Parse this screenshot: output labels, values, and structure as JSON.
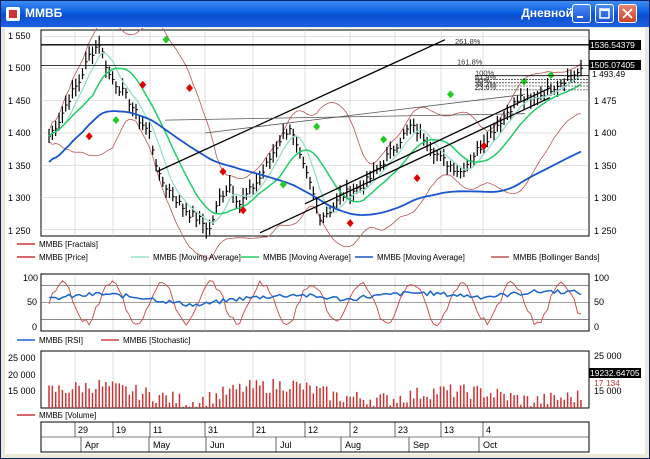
{
  "window": {
    "title": "ММВБ",
    "period_label": "Дневной",
    "minimize_icon": "minimize-icon",
    "maximize_icon": "maximize-icon",
    "close_icon": "close-icon"
  },
  "colors": {
    "bg": "#ffffff",
    "grid": "#c0c0c0",
    "bar": "#000000",
    "fractal": "#e00000",
    "fractal_up": "#22cc22",
    "ma_fast": "#99ddcc",
    "ma_mid": "#22cc66",
    "ma_slow": "#1a55cc",
    "bollinger": "#bb5555",
    "rsi": "#1a66cc",
    "stochastic": "#cc4444",
    "volume": "#cc3333",
    "highlight": "#000000"
  },
  "price_panel": {
    "y_ticks_left": [
      "1 550",
      "1 500",
      "1 450",
      "1 400",
      "1 350",
      "1 300",
      "1 250"
    ],
    "y_ticks_right": [
      "1 475",
      "1 450",
      "1 400",
      "1 350",
      "1 300",
      "1 250"
    ],
    "label_boxes": [
      "1536.54379",
      "1505.07405"
    ],
    "price_label": "1 493.49",
    "fib_labels": [
      "261.8%",
      "161.8%",
      "100%",
      "61.8%",
      "50%",
      "38.2%",
      "23.6%"
    ],
    "legend": [
      {
        "name": "ММВБ [Fractals]",
        "color": "#cc3333"
      },
      {
        "name": "ММВБ [Price]",
        "color": "#cc3333"
      },
      {
        "name": "ММВБ [Moving Average]",
        "color": "#99ddcc"
      },
      {
        "name": "ММВБ [Moving Average]",
        "color": "#22cc66"
      },
      {
        "name": "ММВБ [Moving Average]",
        "color": "#1a55cc"
      },
      {
        "name": "ММВБ [Bollinger Bands]",
        "color": "#bb5555"
      }
    ]
  },
  "osc_panel": {
    "y_ticks_left": [
      "100",
      "50",
      "0"
    ],
    "y_ticks_right": [
      "100",
      "50",
      "0"
    ],
    "legend": [
      {
        "name": "ММВБ [RSI]",
        "color": "#1a66cc"
      },
      {
        "name": "ММВБ [Stochastic]",
        "color": "#cc4444"
      }
    ]
  },
  "volume_panel": {
    "y_ticks_left": [
      "25 000",
      "20 000",
      "15 000"
    ],
    "y_ticks_right": [
      "25 000",
      "20 000",
      "15 000"
    ],
    "label_box": "19232.64705",
    "price_label": "17 134",
    "legend": [
      {
        "name": "ММВБ [Volume]",
        "color": "#cc3333"
      }
    ]
  },
  "x_axis": {
    "days": [
      "29",
      "19",
      "11",
      "31",
      "21",
      "12",
      "2",
      "23",
      "13",
      "4"
    ],
    "months": [
      "Apr",
      "May",
      "Jun",
      "Jul",
      "Aug",
      "Sep",
      "Oct"
    ]
  },
  "chart_data": {
    "type": "line",
    "series": [
      {
        "name": "ММВБ [Price]",
        "values": [
          1395,
          1420,
          1455,
          1480,
          1520,
          1540,
          1490,
          1470,
          1450,
          1420,
          1400,
          1330,
          1310,
          1290,
          1275,
          1265,
          1250,
          1300,
          1320,
          1290,
          1310,
          1330,
          1360,
          1390,
          1410,
          1360,
          1320,
          1270,
          1280,
          1300,
          1310,
          1315,
          1330,
          1350,
          1370,
          1390,
          1410,
          1400,
          1380,
          1360,
          1350,
          1340,
          1360,
          1380,
          1400,
          1420,
          1440,
          1455,
          1450,
          1460,
          1470,
          1480,
          1490,
          1495
        ]
      },
      {
        "name": "ММВБ [RSI]",
        "values": [
          55,
          60,
          62,
          65,
          63,
          60,
          58,
          52,
          48,
          45,
          50,
          55,
          58,
          60,
          62,
          64,
          60,
          58,
          55,
          60,
          62,
          65,
          67,
          66,
          64,
          62,
          60,
          62,
          65,
          68,
          70,
          69,
          67
        ]
      },
      {
        "name": "ММВБ [Volume]",
        "values": [
          18000,
          19000,
          17500,
          16000,
          18500,
          19200,
          17000,
          16500,
          18000,
          17800,
          16200,
          17100
        ]
      }
    ],
    "ylim_price": [
      1240,
      1560
    ],
    "ylim_osc": [
      0,
      100
    ],
    "ylim_volume": [
      15000,
      25000
    ]
  }
}
